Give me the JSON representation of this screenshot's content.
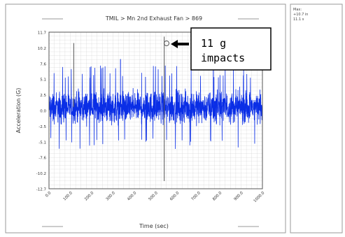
{
  "chart_data": {
    "type": "line",
    "title": "TMIL > Mn 2nd Exhaust Fan > 869",
    "xlabel": "Time (sec)",
    "ylabel": "Acceleration (G)",
    "y_ticks": [
      "11.7",
      "10.2",
      "7.6",
      "5.1",
      "2.5",
      "0.0",
      "-2.5",
      "-5.1",
      "-7.6",
      "-10.2",
      "-12.7"
    ],
    "x_ticks": [
      "0.0",
      "100.0",
      "200.0",
      "300.0",
      "400.0",
      "500.0",
      "600.0",
      "700.0",
      "800.0",
      "900.0",
      "1000.0"
    ],
    "xlim": [
      0,
      1000
    ],
    "ylim": [
      -12.7,
      11.7
    ],
    "series": [
      {
        "color": "#0a2ee6",
        "noise_band": {
          "mean": 0.0,
          "typical_amplitude": 3.5,
          "peak_amplitude": 6.5
        },
        "spikes": [
          {
            "x": 116,
            "y": 10.0
          },
          {
            "x": 335,
            "y": 7.5
          },
          {
            "x": 540,
            "y": 11.0
          },
          {
            "x": 540,
            "y": -11.5
          },
          {
            "x": 770,
            "y": 6.8
          }
        ]
      }
    ],
    "grid": true
  },
  "annotation": {
    "text_line1": "11 g",
    "text_line2": "impacts"
  },
  "side_panel": {
    "lines": [
      "Max:",
      "+10.7 in",
      "11.1 s"
    ]
  },
  "colors": {
    "series": "#0a2ee6",
    "grid": "#d9d9d9",
    "panel_border": "#9a9a9a"
  }
}
